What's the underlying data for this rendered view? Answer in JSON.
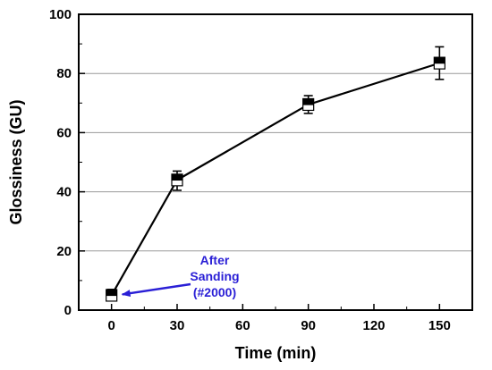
{
  "chart_data": {
    "type": "line",
    "title": "",
    "xlabel": "Time (min)",
    "ylabel": "Glossiness (GU)",
    "xlim": [
      -15,
      165
    ],
    "ylim": [
      0,
      100
    ],
    "xticks": [
      0,
      30,
      60,
      90,
      120,
      150
    ],
    "yticks": [
      0,
      20,
      40,
      60,
      80,
      100
    ],
    "grid": "horizontal",
    "series": [
      {
        "x": [
          0,
          30,
          90,
          150
        ],
        "y": [
          5,
          44,
          69.5,
          83.5
        ],
        "y_err_low": [
          3.5,
          40.5,
          66.5,
          78
        ],
        "y_err_high": [
          7,
          47,
          72.5,
          89
        ],
        "color": "#000000"
      }
    ],
    "annotations": [
      {
        "lines": [
          "After",
          "Sanding",
          "(#2000)"
        ],
        "color": "#2a1fd6",
        "arrow_to": [
          0,
          5
        ]
      }
    ]
  }
}
